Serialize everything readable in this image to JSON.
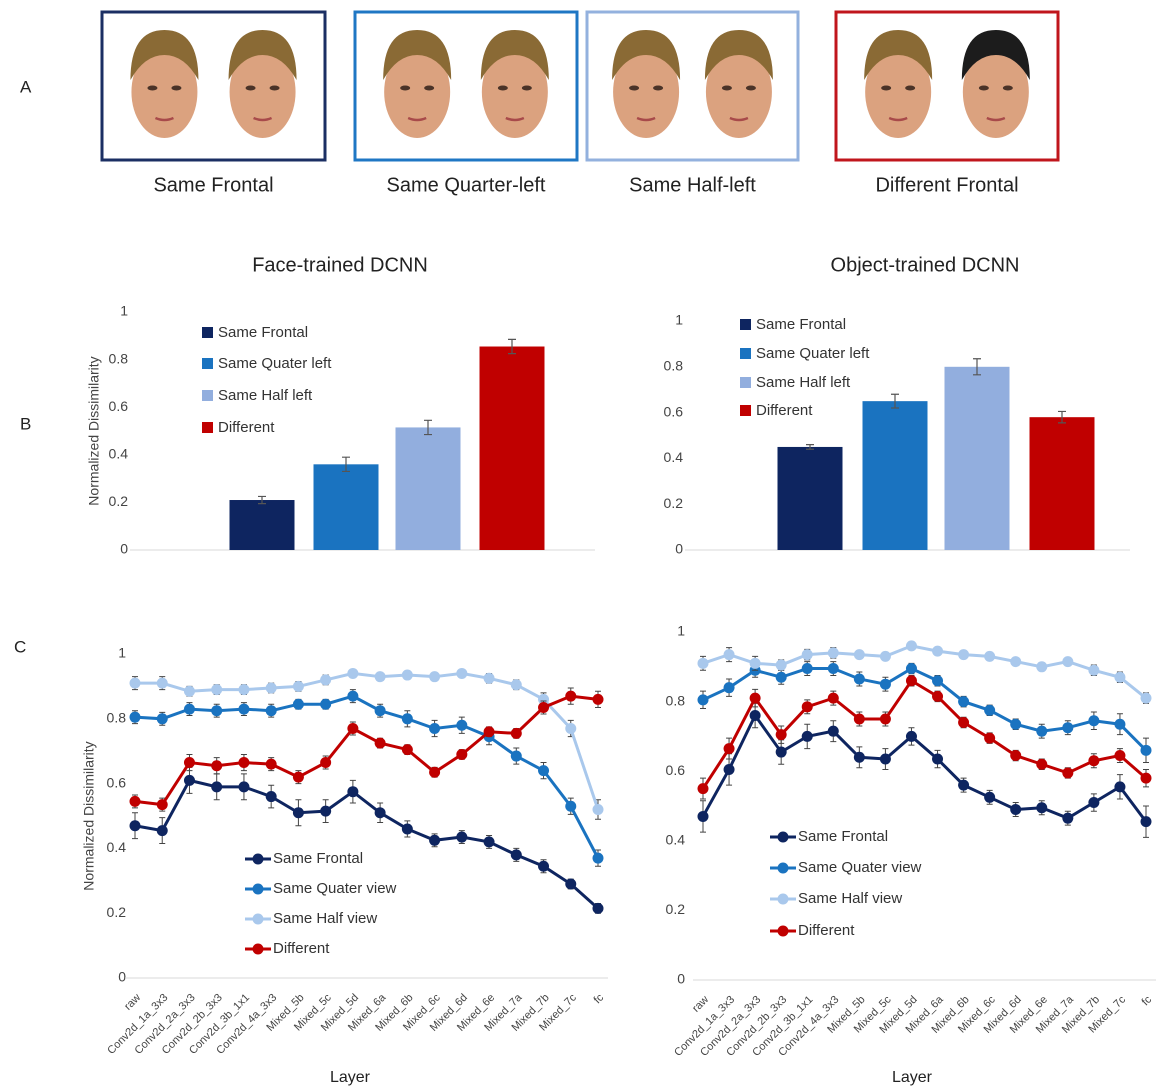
{
  "panel_labels": [
    "A",
    "B",
    "C"
  ],
  "conditions": [
    {
      "label": "Same Frontal",
      "border": "#1b2f63",
      "hair": "#8a6a35"
    },
    {
      "label": "Same Quarter-left",
      "border": "#1f77c4",
      "hair": "#8a6a35"
    },
    {
      "label": "Same Half-left",
      "border": "#93b1de",
      "hair": "#8a6a35"
    },
    {
      "label": "Different Frontal",
      "border": "#c0161c",
      "hair": "#1c1c1c"
    }
  ],
  "chart_data": [
    {
      "type": "bar",
      "title": "Face-trained DCNN",
      "y_label": "Normalized Dissimilarity",
      "categories": [
        "Same Frontal",
        "Same Quater left",
        "Same Half left",
        "Different"
      ],
      "values": [
        0.21,
        0.36,
        0.515,
        0.855
      ],
      "errors": [
        0.015,
        0.03,
        0.03,
        0.03
      ],
      "colors": [
        "#0e2560",
        "#1a73c0",
        "#92aede",
        "#c00000"
      ],
      "ylim": [
        0,
        1
      ],
      "yticks": [
        0,
        0.2,
        0.4,
        0.6,
        0.8,
        1
      ]
    },
    {
      "type": "bar",
      "title": "Object-trained DCNN",
      "categories": [
        "Same Frontal",
        "Same Quater left",
        "Same Half left",
        "Different"
      ],
      "values": [
        0.45,
        0.65,
        0.8,
        0.58
      ],
      "errors": [
        0.01,
        0.03,
        0.035,
        0.025
      ],
      "colors": [
        "#0e2560",
        "#1a73c0",
        "#92aede",
        "#c00000"
      ],
      "ylim": [
        0,
        1
      ],
      "yticks": [
        0,
        0.2,
        0.4,
        0.6,
        0.8,
        1
      ]
    },
    {
      "type": "line",
      "y_label": "Normalized Dissimilarity",
      "x_label": "Layer",
      "categories": [
        "raw",
        "Conv2d_1a_3x3",
        "Conv2d_2a_3x3",
        "Conv2d_2b_3x3",
        "Conv2d_3b_1x1",
        "Conv2d_4a_3x3",
        "Mixed_5b",
        "Mixed_5c",
        "Mixed_5d",
        "Mixed_6a",
        "Mixed_6b",
        "Mixed_6c",
        "Mixed_6d",
        "Mixed_6e",
        "Mixed_7a",
        "Mixed_7b",
        "Mixed_7c",
        "fc"
      ],
      "ylim": [
        0,
        1
      ],
      "yticks": [
        0,
        0.2,
        0.4,
        0.6,
        0.8,
        1
      ],
      "series": [
        {
          "name": "Same Frontal",
          "color": "#0e2560",
          "values": [
            0.47,
            0.455,
            0.61,
            0.59,
            0.59,
            0.56,
            0.51,
            0.515,
            0.575,
            0.51,
            0.46,
            0.425,
            0.435,
            0.42,
            0.38,
            0.345,
            0.29,
            0.215
          ],
          "errors": [
            0.04,
            0.04,
            0.04,
            0.04,
            0.04,
            0.035,
            0.04,
            0.035,
            0.035,
            0.03,
            0.025,
            0.02,
            0.02,
            0.02,
            0.02,
            0.02,
            0.015,
            0.015
          ]
        },
        {
          "name": "Same Quater view",
          "color": "#1a73c0",
          "values": [
            0.805,
            0.8,
            0.83,
            0.825,
            0.83,
            0.825,
            0.845,
            0.845,
            0.87,
            0.825,
            0.8,
            0.77,
            0.78,
            0.745,
            0.685,
            0.64,
            0.53,
            0.37
          ],
          "errors": [
            0.02,
            0.02,
            0.02,
            0.02,
            0.02,
            0.02,
            0.015,
            0.015,
            0.02,
            0.02,
            0.025,
            0.025,
            0.025,
            0.025,
            0.025,
            0.025,
            0.025,
            0.025
          ]
        },
        {
          "name": "Same Half view",
          "color": "#a9c8ec",
          "values": [
            0.91,
            0.91,
            0.885,
            0.89,
            0.89,
            0.895,
            0.9,
            0.92,
            0.94,
            0.93,
            0.935,
            0.93,
            0.94,
            0.925,
            0.905,
            0.86,
            0.77,
            0.52
          ],
          "errors": [
            0.02,
            0.02,
            0.015,
            0.015,
            0.015,
            0.015,
            0.015,
            0.015,
            0.01,
            0.01,
            0.01,
            0.01,
            0.01,
            0.015,
            0.015,
            0.02,
            0.025,
            0.03
          ]
        },
        {
          "name": "Different",
          "color": "#c00000",
          "values": [
            0.545,
            0.535,
            0.665,
            0.655,
            0.665,
            0.66,
            0.62,
            0.665,
            0.77,
            0.725,
            0.705,
            0.635,
            0.69,
            0.76,
            0.755,
            0.835,
            0.87,
            0.86
          ],
          "errors": [
            0.02,
            0.02,
            0.025,
            0.025,
            0.025,
            0.02,
            0.02,
            0.02,
            0.02,
            0.015,
            0.015,
            0.015,
            0.015,
            0.015,
            0.015,
            0.02,
            0.025,
            0.025
          ]
        }
      ]
    },
    {
      "type": "line",
      "x_label": "Layer",
      "categories": [
        "raw",
        "Conv2d_1a_3x3",
        "Conv2d_2a_3x3",
        "Conv2d_2b_3x3",
        "Conv2d_3b_1x1",
        "Conv2d_4a_3x3",
        "Mixed_5b",
        "Mixed_5c",
        "Mixed_5d",
        "Mixed_6a",
        "Mixed_6b",
        "Mixed_6c",
        "Mixed_6d",
        "Mixed_6e",
        "Mixed_7a",
        "Mixed_7b",
        "Mixed_7c",
        "fc"
      ],
      "ylim": [
        0,
        1
      ],
      "yticks": [
        0,
        0.2,
        0.4,
        0.6,
        0.8,
        1
      ],
      "series": [
        {
          "name": "Same Frontal",
          "color": "#0e2560",
          "values": [
            0.47,
            0.605,
            0.76,
            0.655,
            0.7,
            0.715,
            0.64,
            0.635,
            0.7,
            0.635,
            0.56,
            0.525,
            0.49,
            0.495,
            0.465,
            0.51,
            0.555,
            0.455
          ],
          "errors": [
            0.045,
            0.045,
            0.035,
            0.035,
            0.035,
            0.03,
            0.03,
            0.03,
            0.025,
            0.025,
            0.02,
            0.02,
            0.02,
            0.02,
            0.02,
            0.025,
            0.035,
            0.045
          ]
        },
        {
          "name": "Same Quater view",
          "color": "#1a73c0",
          "values": [
            0.805,
            0.84,
            0.89,
            0.87,
            0.895,
            0.895,
            0.865,
            0.85,
            0.895,
            0.86,
            0.8,
            0.775,
            0.735,
            0.715,
            0.725,
            0.745,
            0.735,
            0.66
          ],
          "errors": [
            0.025,
            0.025,
            0.02,
            0.02,
            0.02,
            0.02,
            0.02,
            0.02,
            0.015,
            0.015,
            0.015,
            0.015,
            0.015,
            0.02,
            0.02,
            0.025,
            0.03,
            0.035
          ]
        },
        {
          "name": "Same Half view",
          "color": "#a9c8ec",
          "values": [
            0.91,
            0.935,
            0.91,
            0.905,
            0.935,
            0.94,
            0.935,
            0.93,
            0.96,
            0.945,
            0.935,
            0.93,
            0.915,
            0.9,
            0.915,
            0.89,
            0.87,
            0.81
          ],
          "errors": [
            0.02,
            0.02,
            0.02,
            0.015,
            0.015,
            0.015,
            0.01,
            0.01,
            0.01,
            0.01,
            0.01,
            0.01,
            0.01,
            0.01,
            0.01,
            0.015,
            0.015,
            0.015
          ]
        },
        {
          "name": "Different",
          "color": "#c00000",
          "values": [
            0.55,
            0.665,
            0.81,
            0.705,
            0.785,
            0.81,
            0.75,
            0.75,
            0.86,
            0.815,
            0.74,
            0.695,
            0.645,
            0.62,
            0.595,
            0.63,
            0.645,
            0.58
          ],
          "errors": [
            0.03,
            0.03,
            0.025,
            0.025,
            0.02,
            0.02,
            0.02,
            0.02,
            0.015,
            0.015,
            0.015,
            0.015,
            0.015,
            0.015,
            0.015,
            0.02,
            0.02,
            0.025
          ]
        }
      ]
    }
  ]
}
